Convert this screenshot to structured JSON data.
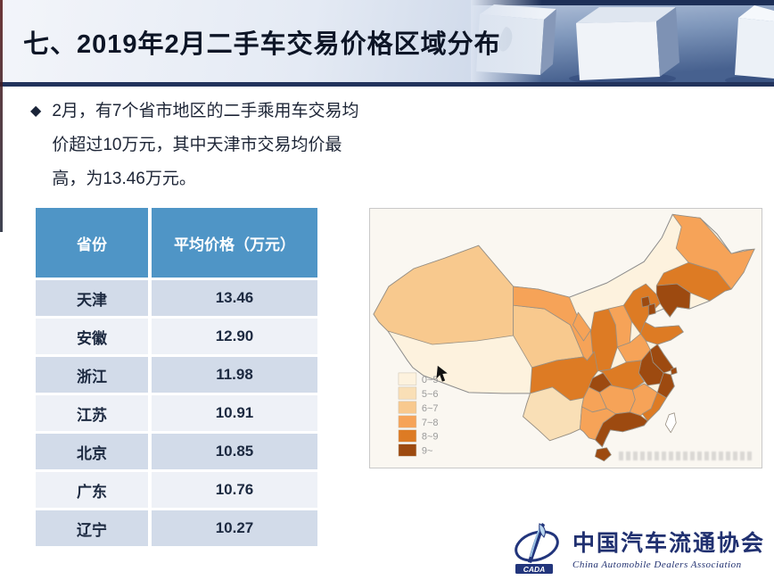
{
  "slide": {
    "title": "七、2019年2月二手车交易价格区域分布",
    "bullet_marker": "◆",
    "bullet": "2月，有7个省市地区的二手乘用车交易均价超过10万元，其中天津市交易均价最高，为13.46万元。"
  },
  "table": {
    "headers": [
      "省份",
      "平均价格（万元）"
    ],
    "rows": [
      {
        "province": "天津",
        "price": "13.46"
      },
      {
        "province": "安徽",
        "price": "12.90"
      },
      {
        "province": "浙江",
        "price": "11.98"
      },
      {
        "province": "江苏",
        "price": "10.91"
      },
      {
        "province": "北京",
        "price": "10.85"
      },
      {
        "province": "广东",
        "price": "10.76"
      },
      {
        "province": "辽宁",
        "price": "10.27"
      }
    ]
  },
  "chart_data": {
    "type": "choropleth",
    "subject": "二手车交易均价区域分布",
    "unit": "万元",
    "legend_position": "bottom-left",
    "legend": [
      {
        "label": "0~5",
        "color": "#fdf2de"
      },
      {
        "label": "5~6",
        "color": "#f9dfb6"
      },
      {
        "label": "6~7",
        "color": "#f8c98e"
      },
      {
        "label": "7~8",
        "color": "#f6a358"
      },
      {
        "label": "8~9",
        "color": "#dd7b24"
      },
      {
        "label": "9~",
        "color": "#9d4a10"
      }
    ],
    "regions": [
      {
        "name": "新疆",
        "band": "6~7"
      },
      {
        "name": "西藏",
        "band": "0~5"
      },
      {
        "name": "青海",
        "band": "6~7"
      },
      {
        "name": "甘肃",
        "band": "7~8"
      },
      {
        "name": "内蒙古",
        "band": "0~5"
      },
      {
        "name": "宁夏",
        "band": "7~8"
      },
      {
        "name": "陕西",
        "band": "8~9"
      },
      {
        "name": "山西",
        "band": "7~8"
      },
      {
        "name": "河北",
        "band": "8~9"
      },
      {
        "name": "北京",
        "band": "9~"
      },
      {
        "name": "天津",
        "band": "9~"
      },
      {
        "name": "山东",
        "band": "8~9"
      },
      {
        "name": "河南",
        "band": "7~8"
      },
      {
        "name": "辽宁",
        "band": "9~"
      },
      {
        "name": "吉林",
        "band": "8~9"
      },
      {
        "name": "黑龙江",
        "band": "7~8"
      },
      {
        "name": "江苏",
        "band": "9~"
      },
      {
        "name": "安徽",
        "band": "9~"
      },
      {
        "name": "上海",
        "band": "9~"
      },
      {
        "name": "浙江",
        "band": "9~"
      },
      {
        "name": "湖北",
        "band": "8~9"
      },
      {
        "name": "重庆",
        "band": "9~"
      },
      {
        "name": "四川",
        "band": "8~9"
      },
      {
        "name": "贵州",
        "band": "7~8"
      },
      {
        "name": "湖南",
        "band": "7~8"
      },
      {
        "name": "江西",
        "band": "7~8"
      },
      {
        "name": "福建",
        "band": "8~9"
      },
      {
        "name": "广东",
        "band": "9~"
      },
      {
        "name": "广西",
        "band": "7~8"
      },
      {
        "name": "云南",
        "band": "5~6"
      },
      {
        "name": "海南",
        "band": "9~"
      },
      {
        "name": "台湾",
        "band": "无数据"
      }
    ]
  },
  "logo": {
    "name_cn": "中国汽车流通协会",
    "name_en": "China Automobile Dealers Association",
    "abbr": "CADA"
  },
  "colors": {
    "table_header_bg": "#4f95c6",
    "row_dark": "#d2dbe9",
    "row_light": "#eef1f7",
    "accent_navy": "#203070",
    "header_border": "#22335c"
  }
}
